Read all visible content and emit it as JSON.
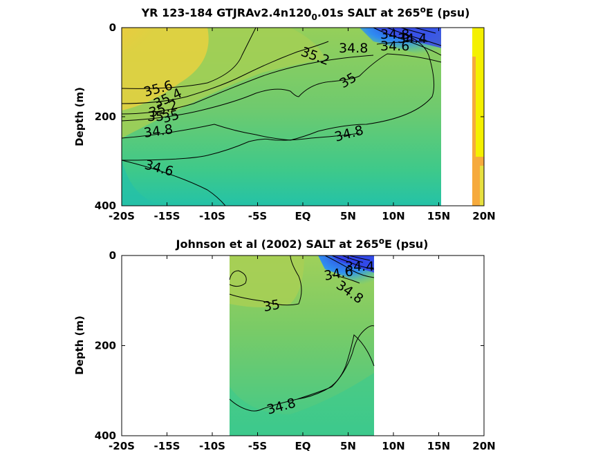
{
  "chart_data": [
    {
      "type": "heatmap",
      "title_parts": [
        "YR 123-184 GTJRAv2.4n120",
        "0",
        ".01s SALT at 265",
        "o",
        "E (psu)"
      ],
      "ylabel": "Depth (m)",
      "xlim": [
        -20,
        20
      ],
      "ylim": [
        0,
        400
      ],
      "y_reversed": true,
      "x_ticks": [
        -20,
        -15,
        -10,
        -5,
        0,
        5,
        10,
        15,
        20
      ],
      "x_tick_labels": [
        "-20S",
        "-15S",
        "-10S",
        "-5S",
        "EQ",
        "5N",
        "10N",
        "15N",
        "20N"
      ],
      "y_ticks": [
        0,
        200,
        400
      ],
      "y_tick_labels": [
        "0",
        "200",
        "400"
      ],
      "data_extent_lat": [
        -20,
        15.2
      ],
      "contour_labels": [
        "35.6",
        "35.4",
        "35.2",
        "35",
        "35",
        "34.8",
        "34.6",
        "35.2",
        "34.8",
        "35",
        "34.8",
        "34.8",
        "34.6",
        "34.4"
      ],
      "colors": {
        "low": "#3a55e0",
        "mid": "#7ccc6a",
        "high": "#f6c53a",
        "max": "#f4f000"
      }
    },
    {
      "type": "heatmap",
      "title_parts": [
        "Johnson et al (2002) SALT at 265",
        "o",
        "E (psu)"
      ],
      "ylabel": "Depth (m)",
      "xlim": [
        -20,
        20
      ],
      "ylim": [
        0,
        400
      ],
      "y_reversed": true,
      "x_ticks": [
        -20,
        -15,
        -10,
        -5,
        0,
        5,
        10,
        15,
        20
      ],
      "x_tick_labels": [
        "-20S",
        "-15S",
        "-10S",
        "-5S",
        "EQ",
        "5N",
        "10N",
        "15N",
        "20N"
      ],
      "y_ticks": [
        0,
        200,
        400
      ],
      "y_tick_labels": [
        "0",
        "200",
        "400"
      ],
      "data_extent_lat": [
        -8,
        8
      ],
      "contour_labels": [
        "35",
        "34.8",
        "34.6",
        "34.8",
        "34.4"
      ],
      "colors": {
        "low": "#3a55e0",
        "mid": "#7ccc6a",
        "high": "#e7b83c"
      }
    }
  ]
}
